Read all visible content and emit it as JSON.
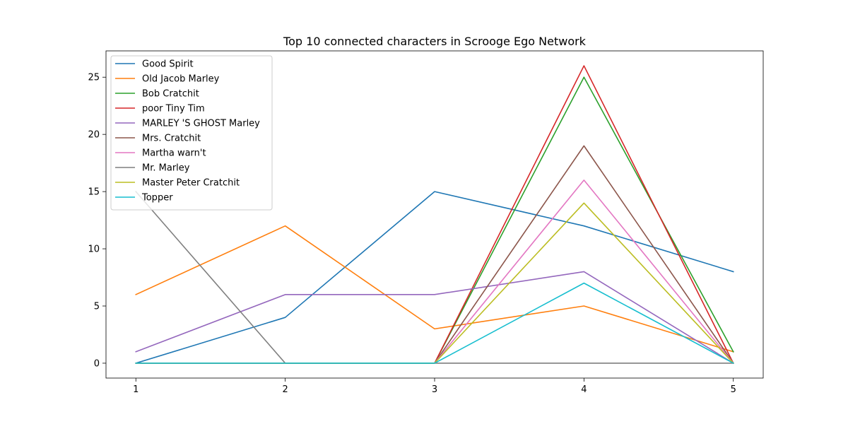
{
  "chart_data": {
    "type": "line",
    "title": "Top 10 connected characters in Scrooge Ego Network",
    "xlabel": "",
    "ylabel": "",
    "x": [
      1,
      2,
      3,
      4,
      5
    ],
    "xlim": [
      0.8,
      5.2
    ],
    "ylim": [
      -1.3,
      27.3
    ],
    "xticks": [
      1,
      2,
      3,
      4,
      5
    ],
    "yticks": [
      0,
      5,
      10,
      15,
      20,
      25
    ],
    "grid": false,
    "legend_position": "top-left",
    "series": [
      {
        "name": "Good Spirit",
        "color": "#1f77b4",
        "values": [
          0,
          4,
          15,
          12,
          8
        ]
      },
      {
        "name": "Old Jacob Marley",
        "color": "#ff7f0e",
        "values": [
          6,
          12,
          3,
          5,
          1
        ]
      },
      {
        "name": "Bob Cratchit",
        "color": "#2ca02c",
        "values": [
          0,
          0,
          0,
          25,
          1
        ]
      },
      {
        "name": "poor Tiny Tim",
        "color": "#d62728",
        "values": [
          0,
          0,
          0,
          26,
          0
        ]
      },
      {
        "name": "MARLEY 'S GHOST Marley",
        "color": "#9467bd",
        "values": [
          1,
          6,
          6,
          8,
          0
        ]
      },
      {
        "name": "Mrs. Cratchit",
        "color": "#8c564b",
        "values": [
          0,
          0,
          0,
          19,
          0
        ]
      },
      {
        "name": "Martha warn't",
        "color": "#e377c2",
        "values": [
          0,
          0,
          0,
          16,
          0
        ]
      },
      {
        "name": "Mr. Marley",
        "color": "#7f7f7f",
        "values": [
          15,
          0,
          0,
          0,
          0
        ]
      },
      {
        "name": "Master Peter Cratchit",
        "color": "#bcbd22",
        "values": [
          0,
          0,
          0,
          14,
          0
        ]
      },
      {
        "name": "Topper",
        "color": "#17becf",
        "values": [
          0,
          0,
          0,
          7,
          0
        ]
      }
    ]
  }
}
